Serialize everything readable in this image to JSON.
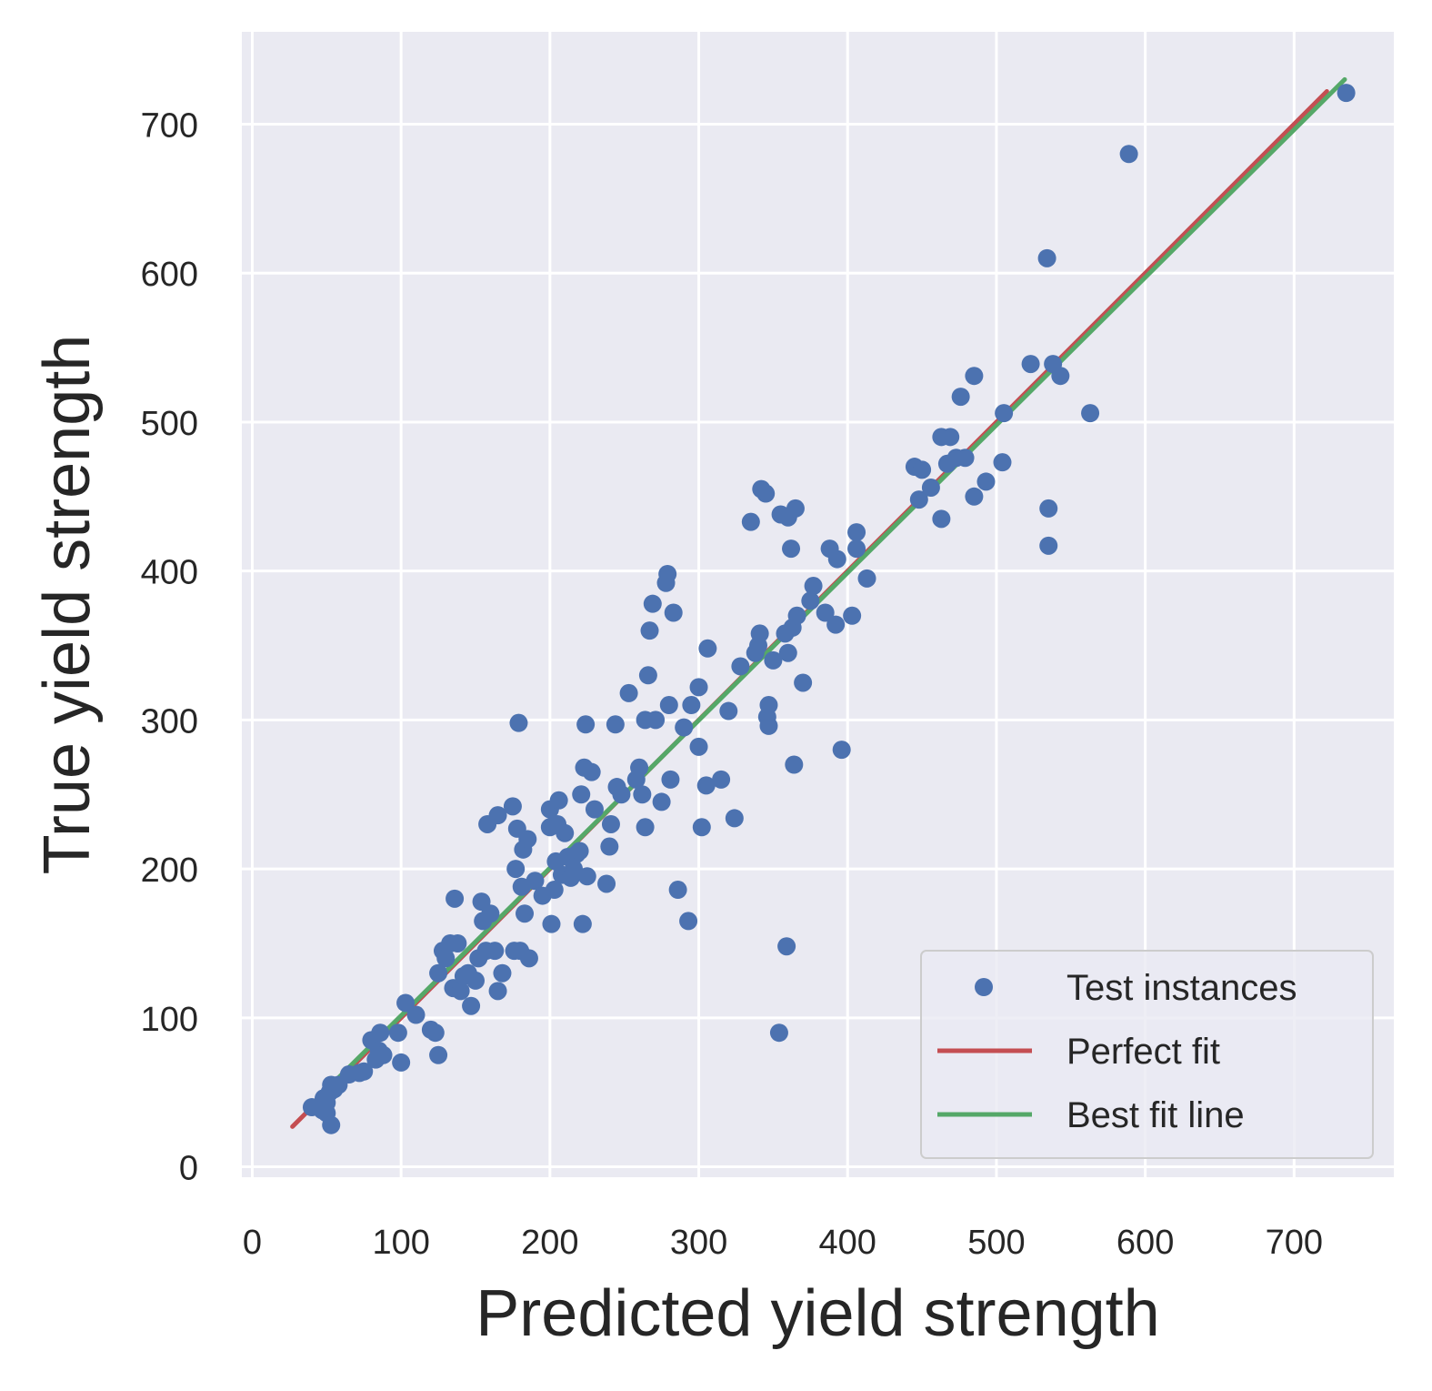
{
  "chart_data": {
    "type": "scatter",
    "title": "",
    "xlabel": "Predicted yield strength",
    "ylabel": "True yield strength",
    "xlim": [
      -7,
      767
    ],
    "ylim": [
      -7,
      762
    ],
    "xticks": [
      0,
      100,
      200,
      300,
      400,
      500,
      600,
      700
    ],
    "yticks": [
      0,
      100,
      200,
      300,
      400,
      500,
      600,
      700
    ],
    "grid": true,
    "legend_position": "lower-right",
    "colors": {
      "background": "#eaeaf2",
      "grid": "#ffffff",
      "points": "#4c72b0",
      "perfect_fit": "#c44e52",
      "best_fit": "#55a868"
    },
    "series": [
      {
        "name": "Test instances",
        "kind": "scatter",
        "points": [
          [
            40,
            40
          ],
          [
            45,
            40
          ],
          [
            47,
            38
          ],
          [
            48,
            46
          ],
          [
            50,
            43
          ],
          [
            50,
            36
          ],
          [
            52,
            50
          ],
          [
            53,
            28
          ],
          [
            53,
            55
          ],
          [
            55,
            52
          ],
          [
            58,
            55
          ],
          [
            65,
            62
          ],
          [
            72,
            63
          ],
          [
            75,
            64
          ],
          [
            80,
            85
          ],
          [
            83,
            72
          ],
          [
            85,
            78
          ],
          [
            86,
            90
          ],
          [
            88,
            75
          ],
          [
            98,
            90
          ],
          [
            100,
            70
          ],
          [
            103,
            110
          ],
          [
            110,
            102
          ],
          [
            120,
            92
          ],
          [
            123,
            90
          ],
          [
            125,
            75
          ],
          [
            125,
            130
          ],
          [
            128,
            145
          ],
          [
            130,
            140
          ],
          [
            133,
            150
          ],
          [
            135,
            120
          ],
          [
            136,
            180
          ],
          [
            138,
            150
          ],
          [
            140,
            118
          ],
          [
            142,
            128
          ],
          [
            145,
            130
          ],
          [
            147,
            108
          ],
          [
            150,
            125
          ],
          [
            152,
            140
          ],
          [
            154,
            178
          ],
          [
            155,
            165
          ],
          [
            157,
            145
          ],
          [
            158,
            230
          ],
          [
            160,
            170
          ],
          [
            163,
            145
          ],
          [
            165,
            118
          ],
          [
            165,
            236
          ],
          [
            168,
            130
          ],
          [
            175,
            242
          ],
          [
            176,
            145
          ],
          [
            177,
            200
          ],
          [
            178,
            227
          ],
          [
            179,
            298
          ],
          [
            180,
            145
          ],
          [
            181,
            188
          ],
          [
            182,
            213
          ],
          [
            183,
            170
          ],
          [
            185,
            220
          ],
          [
            186,
            140
          ],
          [
            190,
            192
          ],
          [
            195,
            182
          ],
          [
            200,
            228
          ],
          [
            200,
            240
          ],
          [
            201,
            163
          ],
          [
            203,
            186
          ],
          [
            204,
            205
          ],
          [
            205,
            230
          ],
          [
            206,
            246
          ],
          [
            208,
            196
          ],
          [
            210,
            224
          ],
          [
            212,
            208
          ],
          [
            214,
            194
          ],
          [
            216,
            200
          ],
          [
            218,
            210
          ],
          [
            220,
            212
          ],
          [
            221,
            250
          ],
          [
            222,
            163
          ],
          [
            223,
            268
          ],
          [
            224,
            297
          ],
          [
            225,
            195
          ],
          [
            228,
            265
          ],
          [
            230,
            240
          ],
          [
            238,
            190
          ],
          [
            240,
            215
          ],
          [
            241,
            230
          ],
          [
            244,
            297
          ],
          [
            245,
            255
          ],
          [
            248,
            250
          ],
          [
            253,
            318
          ],
          [
            258,
            260
          ],
          [
            260,
            268
          ],
          [
            262,
            250
          ],
          [
            264,
            228
          ],
          [
            264,
            300
          ],
          [
            266,
            330
          ],
          [
            267,
            360
          ],
          [
            269,
            378
          ],
          [
            271,
            300
          ],
          [
            275,
            245
          ],
          [
            278,
            392
          ],
          [
            279,
            398
          ],
          [
            280,
            310
          ],
          [
            281,
            260
          ],
          [
            283,
            372
          ],
          [
            286,
            186
          ],
          [
            290,
            295
          ],
          [
            293,
            165
          ],
          [
            295,
            310
          ],
          [
            300,
            282
          ],
          [
            300,
            322
          ],
          [
            302,
            228
          ],
          [
            305,
            256
          ],
          [
            306,
            348
          ],
          [
            315,
            260
          ],
          [
            320,
            306
          ],
          [
            324,
            234
          ],
          [
            328,
            336
          ],
          [
            335,
            433
          ],
          [
            338,
            345
          ],
          [
            340,
            350
          ],
          [
            341,
            358
          ],
          [
            342,
            455
          ],
          [
            345,
            452
          ],
          [
            346,
            302
          ],
          [
            347,
            296
          ],
          [
            347,
            310
          ],
          [
            350,
            340
          ],
          [
            354,
            90
          ],
          [
            355,
            438
          ],
          [
            358,
            358
          ],
          [
            359,
            148
          ],
          [
            360,
            436
          ],
          [
            360,
            345
          ],
          [
            362,
            415
          ],
          [
            363,
            362
          ],
          [
            364,
            270
          ],
          [
            365,
            442
          ],
          [
            366,
            370
          ],
          [
            370,
            325
          ],
          [
            375,
            380
          ],
          [
            377,
            390
          ],
          [
            385,
            372
          ],
          [
            388,
            415
          ],
          [
            392,
            364
          ],
          [
            393,
            408
          ],
          [
            396,
            280
          ],
          [
            403,
            370
          ],
          [
            406,
            415
          ],
          [
            406,
            426
          ],
          [
            413,
            395
          ],
          [
            445,
            470
          ],
          [
            448,
            448
          ],
          [
            450,
            468
          ],
          [
            456,
            456
          ],
          [
            463,
            435
          ],
          [
            463,
            490
          ],
          [
            467,
            472
          ],
          [
            469,
            490
          ],
          [
            473,
            476
          ],
          [
            476,
            517
          ],
          [
            479,
            476
          ],
          [
            485,
            450
          ],
          [
            485,
            531
          ],
          [
            493,
            460
          ],
          [
            504,
            473
          ],
          [
            505,
            506
          ],
          [
            523,
            539
          ],
          [
            534,
            610
          ],
          [
            535,
            442
          ],
          [
            535,
            417
          ],
          [
            538,
            539
          ],
          [
            543,
            531
          ],
          [
            563,
            506
          ],
          [
            589,
            680
          ],
          [
            735,
            721
          ]
        ]
      },
      {
        "name": "Perfect fit",
        "kind": "line",
        "x": [
          27,
          722
        ],
        "y": [
          27,
          722
        ]
      },
      {
        "name": "Best fit line",
        "kind": "line",
        "x": [
          40,
          734
        ],
        "y": [
          42,
          730
        ]
      }
    ]
  }
}
